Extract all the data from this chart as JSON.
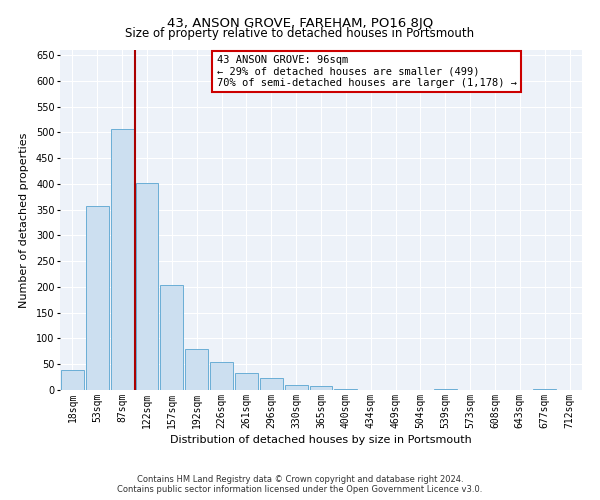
{
  "title": "43, ANSON GROVE, FAREHAM, PO16 8JQ",
  "subtitle": "Size of property relative to detached houses in Portsmouth",
  "xlabel": "Distribution of detached houses by size in Portsmouth",
  "ylabel": "Number of detached properties",
  "bin_labels": [
    "18sqm",
    "53sqm",
    "87sqm",
    "122sqm",
    "157sqm",
    "192sqm",
    "226sqm",
    "261sqm",
    "296sqm",
    "330sqm",
    "365sqm",
    "400sqm",
    "434sqm",
    "469sqm",
    "504sqm",
    "539sqm",
    "573sqm",
    "608sqm",
    "643sqm",
    "677sqm",
    "712sqm"
  ],
  "bar_heights": [
    38,
    357,
    507,
    401,
    203,
    80,
    54,
    33,
    23,
    10,
    8,
    2,
    0,
    0,
    0,
    1,
    0,
    0,
    0,
    1,
    0
  ],
  "bar_color": "#ccdff0",
  "bar_edge_color": "#6aaed6",
  "ylim": [
    0,
    660
  ],
  "yticks": [
    0,
    50,
    100,
    150,
    200,
    250,
    300,
    350,
    400,
    450,
    500,
    550,
    600,
    650
  ],
  "vline_x": 2.5,
  "vline_color": "#aa0000",
  "annotation_title": "43 ANSON GROVE: 96sqm",
  "annotation_line1": "← 29% of detached houses are smaller (499)",
  "annotation_line2": "70% of semi-detached houses are larger (1,178) →",
  "annotation_box_facecolor": "#ffffff",
  "annotation_box_edgecolor": "#cc0000",
  "footer1": "Contains HM Land Registry data © Crown copyright and database right 2024.",
  "footer2": "Contains public sector information licensed under the Open Government Licence v3.0.",
  "fig_facecolor": "#ffffff",
  "plot_facecolor": "#edf2f9",
  "grid_color": "#ffffff",
  "title_fontsize": 9.5,
  "subtitle_fontsize": 8.5,
  "tick_fontsize": 7,
  "ylabel_fontsize": 8,
  "xlabel_fontsize": 8
}
